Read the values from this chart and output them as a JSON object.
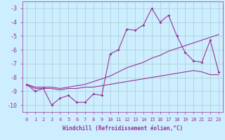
{
  "xlabel": "Windchill (Refroidissement éolien,°C)",
  "x": [
    0,
    1,
    2,
    3,
    4,
    5,
    6,
    7,
    8,
    9,
    10,
    11,
    12,
    13,
    14,
    15,
    16,
    17,
    18,
    19,
    20,
    21,
    22,
    23
  ],
  "line1": [
    -8.5,
    -9.0,
    -8.8,
    -10.0,
    -9.5,
    -9.3,
    -9.8,
    -9.8,
    -9.2,
    -9.3,
    -6.3,
    -6.0,
    -4.5,
    -4.6,
    -4.2,
    -3.0,
    -4.0,
    -3.5,
    -5.0,
    -6.2,
    -6.8,
    -6.9,
    -5.3,
    -7.6
  ],
  "line2": [
    -8.5,
    -8.7,
    -8.7,
    -8.7,
    -8.8,
    -8.7,
    -8.6,
    -8.5,
    -8.3,
    -8.1,
    -7.9,
    -7.6,
    -7.3,
    -7.1,
    -6.9,
    -6.6,
    -6.4,
    -6.1,
    -5.9,
    -5.7,
    -5.5,
    -5.3,
    -5.1,
    -4.9
  ],
  "line3": [
    -8.5,
    -8.8,
    -8.8,
    -8.8,
    -8.9,
    -8.8,
    -8.8,
    -8.7,
    -8.7,
    -8.6,
    -8.5,
    -8.4,
    -8.3,
    -8.2,
    -8.1,
    -8.0,
    -7.9,
    -7.8,
    -7.7,
    -7.6,
    -7.5,
    -7.6,
    -7.8,
    -7.8
  ],
  "color": "#993399",
  "bg_color": "#cceeff",
  "grid_color": "#aacccc",
  "ylim": [
    -10.5,
    -2.5
  ],
  "yticks": [
    -3,
    -4,
    -5,
    -6,
    -7,
    -8,
    -9,
    -10
  ],
  "xticks": [
    0,
    1,
    2,
    3,
    4,
    5,
    6,
    7,
    8,
    9,
    10,
    11,
    12,
    13,
    14,
    15,
    16,
    17,
    18,
    19,
    20,
    21,
    22,
    23
  ]
}
